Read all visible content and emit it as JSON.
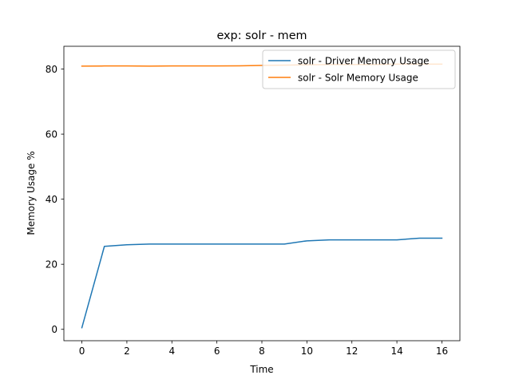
{
  "chart_data": {
    "type": "line",
    "title": "exp: solr - mem",
    "xlabel": "Time",
    "ylabel": "Memory Usage %",
    "xlim": [
      -0.8,
      16.8
    ],
    "ylim": [
      -3.5,
      87
    ],
    "xticks": [
      0,
      2,
      4,
      6,
      8,
      10,
      12,
      14,
      16
    ],
    "yticks": [
      0,
      20,
      40,
      60,
      80
    ],
    "grid": false,
    "legend_position": "top-right",
    "x": [
      0,
      1,
      2,
      3,
      4,
      5,
      6,
      7,
      8,
      9,
      10,
      11,
      12,
      13,
      14,
      15,
      16
    ],
    "series": [
      {
        "name": "solr - Driver Memory Usage",
        "color": "#1f77b4",
        "values": [
          0.5,
          25.5,
          26.0,
          26.2,
          26.2,
          26.2,
          26.2,
          26.2,
          26.2,
          26.2,
          27.2,
          27.5,
          27.5,
          27.5,
          27.5,
          28.0,
          28.0
        ]
      },
      {
        "name": "solr - Solr Memory Usage",
        "color": "#ff7f0e",
        "values": [
          80.9,
          80.95,
          80.95,
          80.9,
          80.95,
          80.95,
          80.95,
          81.0,
          81.1,
          81.2,
          81.3,
          81.4,
          81.4,
          81.4,
          81.5,
          81.5,
          81.5
        ]
      }
    ]
  }
}
